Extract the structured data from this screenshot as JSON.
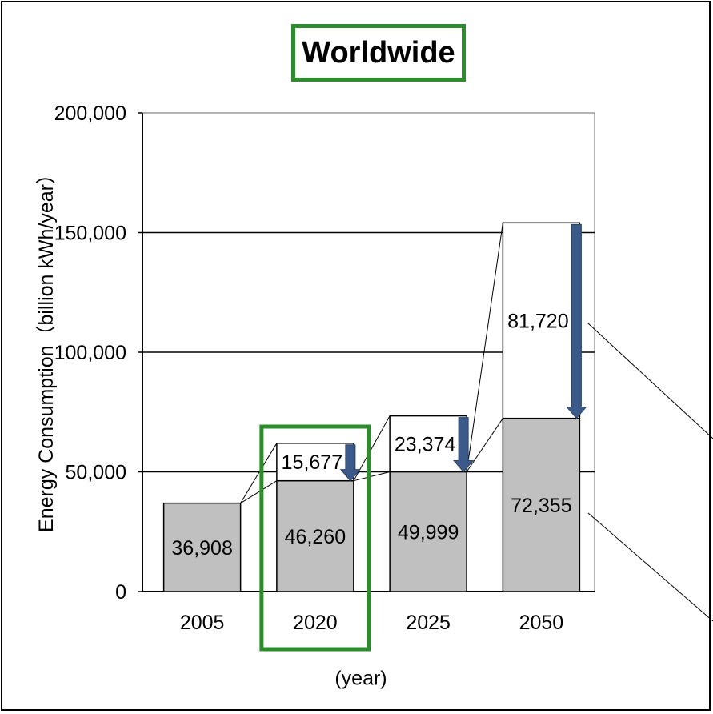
{
  "chart_data": {
    "type": "bar",
    "title": "Worldwide",
    "ylabel": "Energy Consumption（billion kWh/year）",
    "xlabel": "(year)",
    "categories": [
      "2005",
      "2020",
      "2025",
      "2050"
    ],
    "ylim": [
      0,
      200000
    ],
    "yticks": [
      {
        "value": 0,
        "label": "0"
      },
      {
        "value": 50000,
        "label": "50,000"
      },
      {
        "value": 100000,
        "label": "100,000"
      },
      {
        "value": 150000,
        "label": "150,000"
      },
      {
        "value": 200000,
        "label": "200,000"
      }
    ],
    "stacked": true,
    "grid": true,
    "series": [
      {
        "values": [
          36908,
          46260,
          49999,
          72355
        ],
        "labels": [
          "36,908",
          "46,260",
          "49,999",
          "72,355"
        ],
        "color": "#c0c0c0"
      },
      {
        "values": [
          0,
          15677,
          23374,
          81720
        ],
        "labels": [
          "",
          "15,677",
          "23,374",
          "81,720"
        ],
        "color": "#ffffff"
      }
    ],
    "highlight_category": "2020",
    "highlight_color": "#2e8b2e",
    "arrow_color": "#3b5a8a"
  }
}
